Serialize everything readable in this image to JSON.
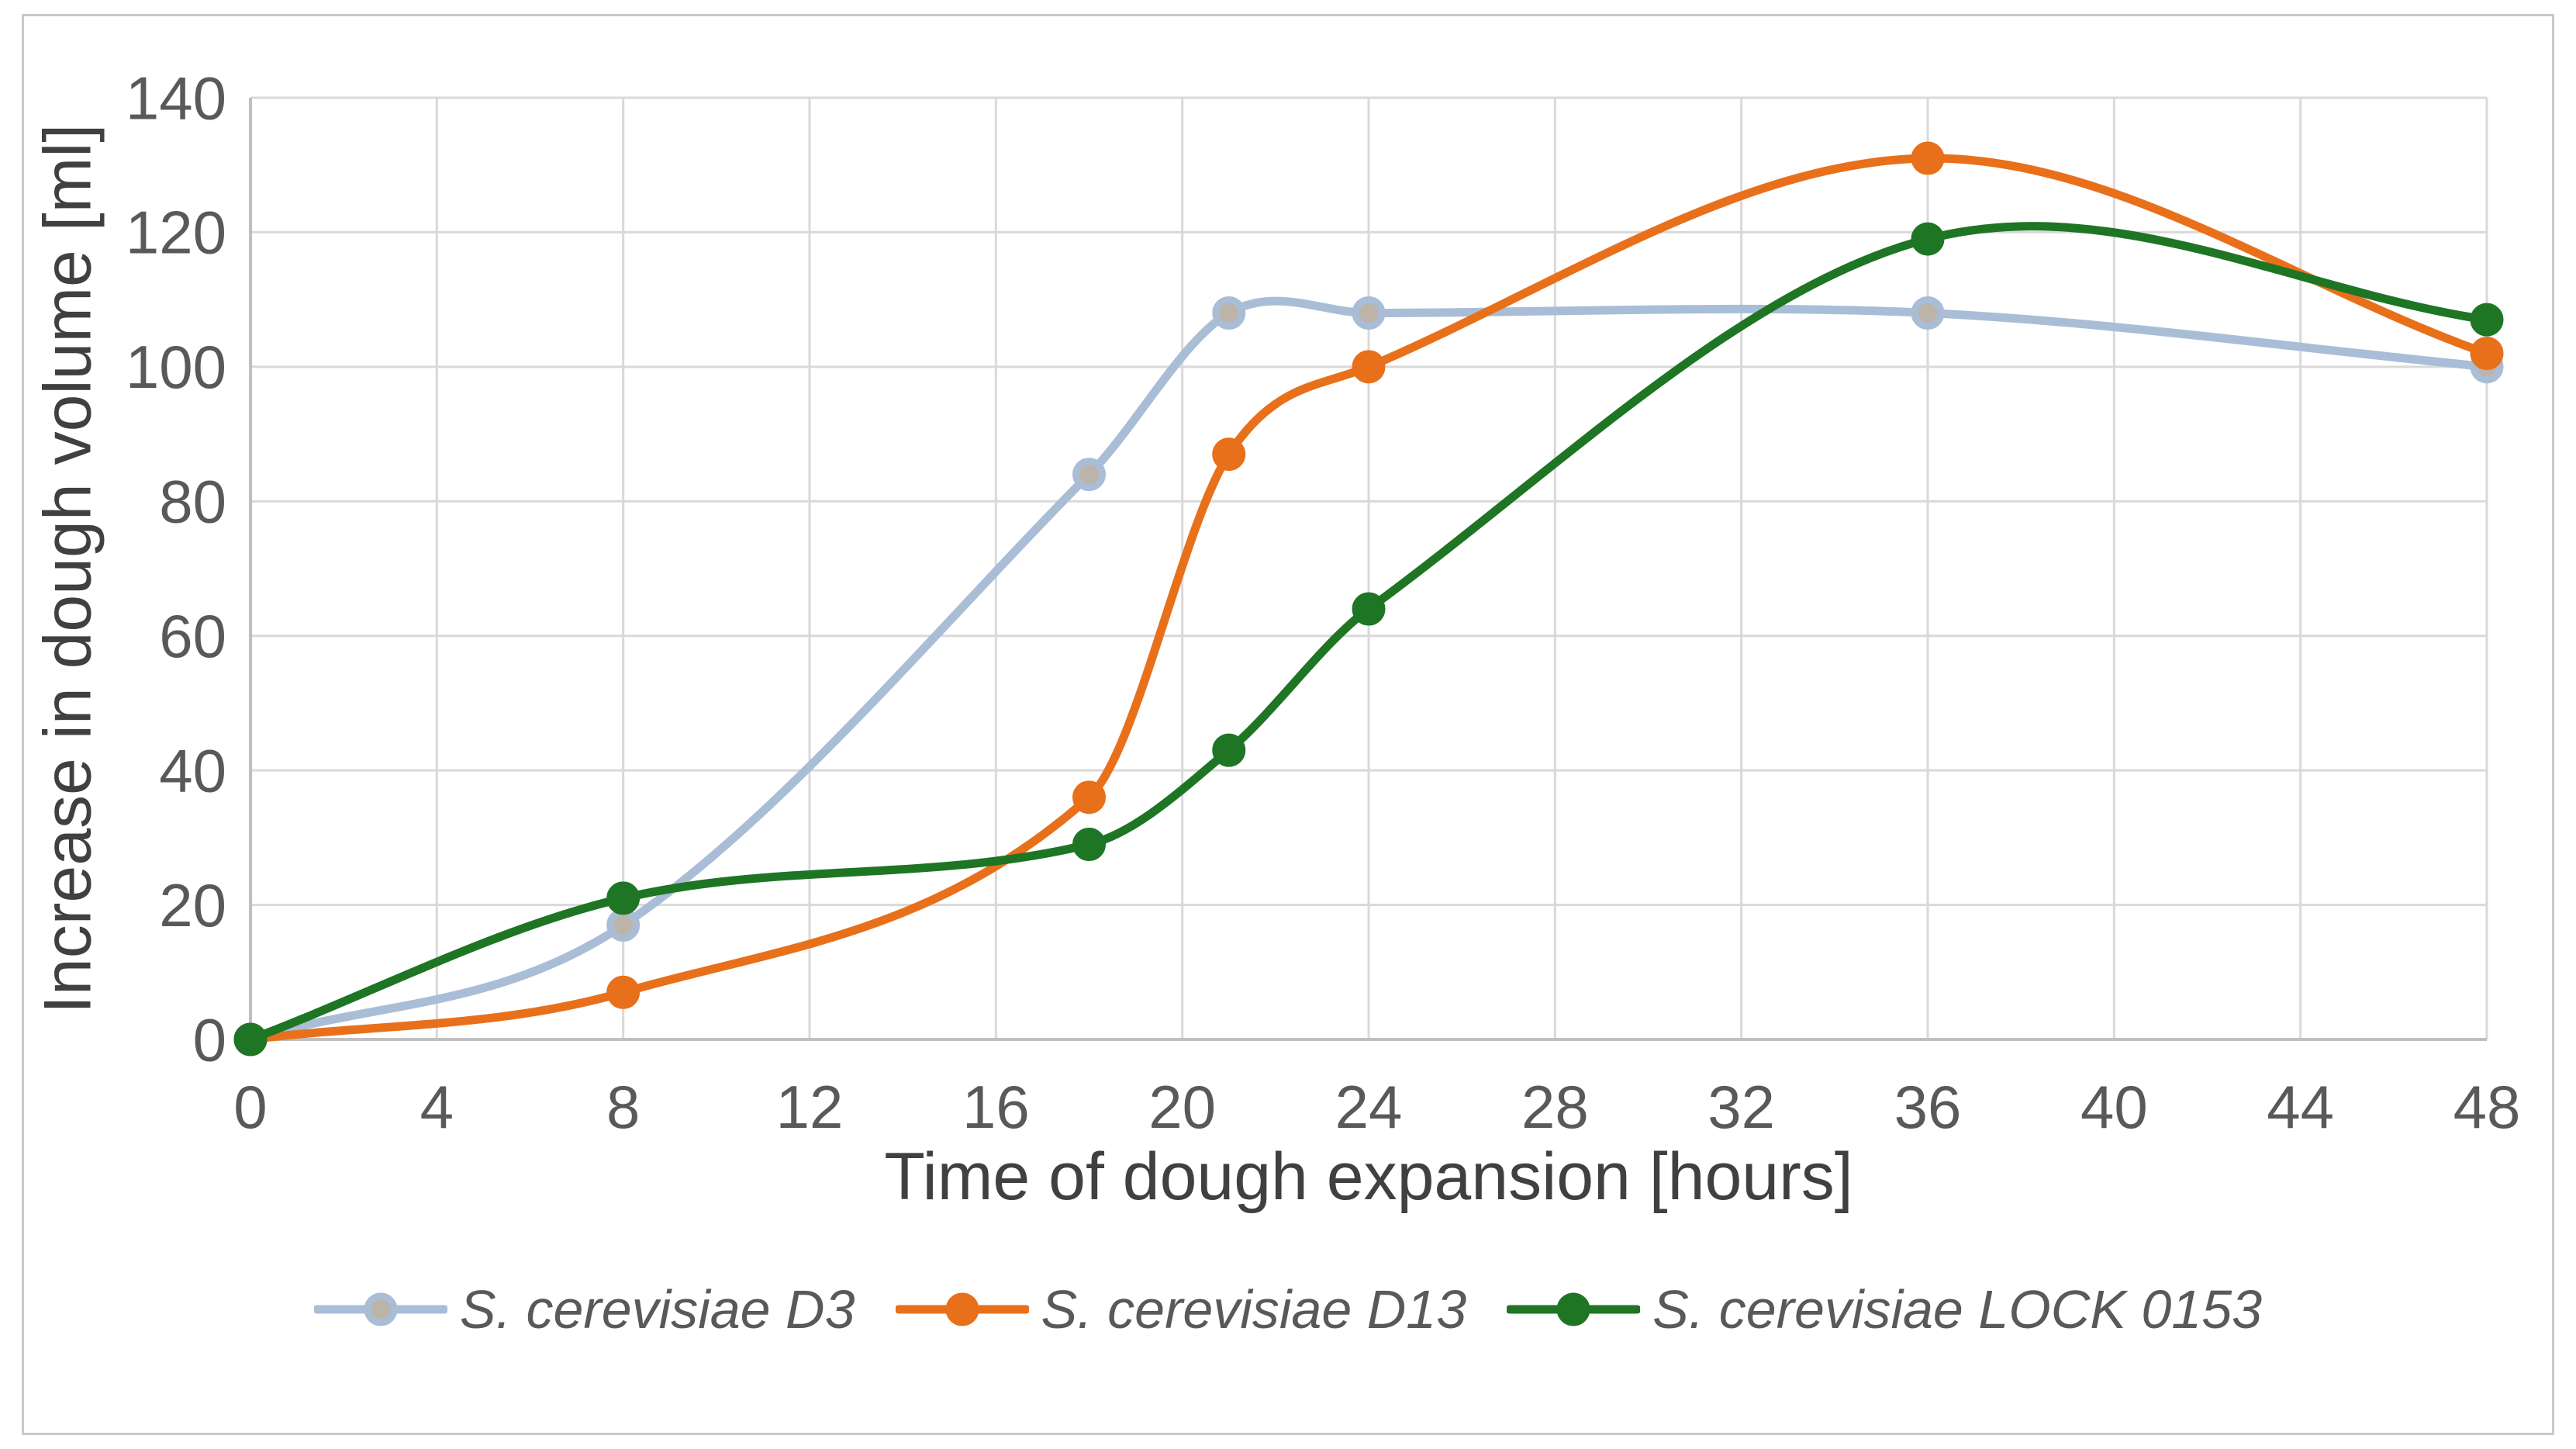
{
  "figure": {
    "background": "#FFFFFF",
    "border_color": "#C9C9C9"
  },
  "chart_data": {
    "type": "line",
    "title": "",
    "xlabel": "Time of dough expansion [hours]",
    "ylabel": "Increase in dough volume [ml]",
    "x": [
      0,
      8,
      18,
      21,
      24,
      36,
      48
    ],
    "series": [
      {
        "name": "S. cerevisiae D3",
        "values": [
          0,
          17,
          84,
          108,
          108,
          108,
          100
        ],
        "line_color": "#A9BDD6",
        "marker_fill": "#BDB4A9"
      },
      {
        "name": "S. cerevisiae D13",
        "values": [
          0,
          7,
          36,
          87,
          100,
          131,
          102
        ],
        "line_color": "#E8701A",
        "marker_fill": "#E8701A"
      },
      {
        "name": "S. cerevisiae LOCK 0153",
        "values": [
          0,
          21,
          29,
          43,
          64,
          119,
          107
        ],
        "line_color": "#1E7524",
        "marker_fill": "#1E7524"
      }
    ],
    "xlim": [
      0,
      48
    ],
    "ylim": [
      0,
      140
    ],
    "x_ticks": [
      0,
      4,
      8,
      12,
      16,
      20,
      24,
      28,
      32,
      36,
      40,
      44,
      48
    ],
    "y_ticks": [
      0,
      20,
      40,
      60,
      80,
      100,
      120,
      140
    ],
    "grid": true,
    "grid_color": "#D9D9D9",
    "axis_line_color": "#BFBFBF",
    "tick_label_color": "#595959",
    "axis_title_color": "#404040",
    "legend_position": "bottom",
    "smooth": true,
    "marker": "circle"
  }
}
